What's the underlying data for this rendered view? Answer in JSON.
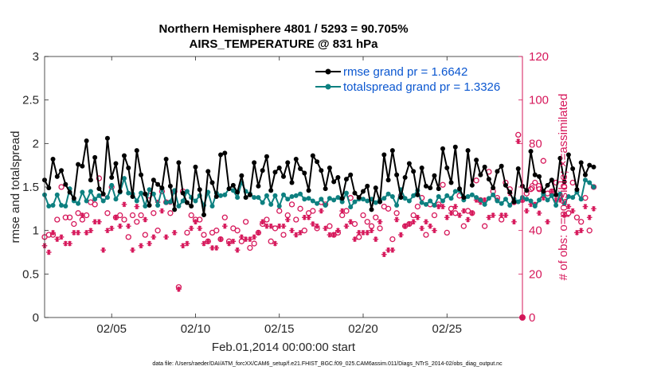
{
  "chart_data": {
    "type": "line",
    "title_line1": "Northern Hemisphere 4801 / 5293 = 90.705%",
    "title_line2": "AIRS_TEMPERATURE @ 831 hPa",
    "xlabel": "Feb.01,2014 00:00:00 start",
    "ylabel_left": "rmse and totalspread",
    "ylabel_right": "# of obs: o=possible; ×=assimilated",
    "footer": "data file: /Users/raeder/DAI/ATM_forcXX/CAM6_setup/f.e21.FHIST_BGC.f09_025.CAM6assim.011/Diags_NTrS_2014-02/obs_diag_output.nc",
    "x_range_days": [
      1,
      29.5
    ],
    "ylim_left": [
      0,
      3
    ],
    "ylim_right": [
      0,
      120
    ],
    "xticks": [
      {
        "day": 5,
        "label": "02/05"
      },
      {
        "day": 10,
        "label": "02/10"
      },
      {
        "day": 15,
        "label": "02/15"
      },
      {
        "day": 20,
        "label": "02/20"
      },
      {
        "day": 25,
        "label": "02/25"
      }
    ],
    "yticks_left": [
      "0",
      "0.5",
      "1",
      "1.5",
      "2",
      "2.5",
      "3"
    ],
    "yticks_right": [
      "0",
      "20",
      "40",
      "60",
      "80",
      "100",
      "120"
    ],
    "legend": [
      {
        "label": "rmse grand pr = 1.6642",
        "color": "#000000"
      },
      {
        "label": "totalspread grand pr = 1.3326",
        "color": "#0d8080"
      }
    ],
    "colors": {
      "rmse": "#000000",
      "spread": "#0d8080",
      "obs": "#d6175a",
      "axis": "#262626"
    },
    "x_start_day": 1.0,
    "x_step_days": 0.25,
    "series": [
      {
        "name": "rmse",
        "values": [
          1.58,
          1.49,
          1.82,
          1.62,
          1.69,
          1.53,
          1.44,
          1.37,
          1.76,
          1.74,
          2.03,
          1.58,
          1.84,
          1.48,
          1.42,
          2.06,
          1.61,
          1.77,
          1.45,
          1.86,
          1.72,
          1.39,
          1.92,
          1.64,
          1.42,
          1.29,
          1.58,
          1.53,
          1.49,
          1.82,
          1.51,
          1.24,
          1.78,
          1.43,
          1.32,
          1.28,
          1.73,
          1.47,
          1.18,
          1.68,
          1.55,
          1.39,
          1.87,
          1.89,
          1.48,
          1.52,
          1.44,
          1.63,
          1.38,
          1.41,
          1.78,
          1.51,
          1.69,
          1.85,
          1.46,
          1.67,
          1.72,
          1.62,
          1.78,
          1.55,
          1.82,
          1.71,
          1.66,
          1.46,
          1.86,
          1.79,
          1.69,
          1.48,
          1.72,
          1.56,
          1.61,
          1.37,
          1.59,
          1.64,
          1.43,
          1.38,
          1.45,
          1.51,
          1.24,
          1.49,
          1.33,
          1.87,
          1.58,
          1.92,
          1.64,
          1.38,
          1.61,
          1.77,
          1.68,
          1.41,
          1.72,
          1.51,
          1.49,
          1.63,
          1.48,
          1.94,
          1.72,
          1.55,
          1.96,
          1.48,
          1.38,
          1.92,
          1.52,
          1.81,
          1.64,
          1.73,
          1.59,
          1.49,
          1.68,
          1.74,
          1.52,
          1.44,
          1.33,
          1.71,
          1.51,
          1.46,
          1.91,
          1.64,
          1.62,
          1.45,
          1.52,
          1.58,
          1.41,
          1.83,
          1.56,
          1.87,
          1.71,
          1.47,
          1.78,
          1.64,
          1.75,
          1.73
        ]
      },
      {
        "name": "totalspread",
        "values": [
          1.41,
          1.28,
          1.29,
          1.41,
          1.29,
          1.28,
          1.48,
          1.34,
          1.31,
          1.44,
          1.34,
          1.45,
          1.36,
          1.4,
          1.34,
          1.38,
          1.52,
          1.36,
          1.44,
          1.6,
          1.43,
          1.42,
          1.34,
          1.43,
          1.28,
          1.47,
          1.42,
          1.29,
          1.48,
          1.32,
          1.33,
          1.46,
          1.28,
          1.34,
          1.45,
          1.38,
          1.34,
          1.4,
          1.29,
          1.44,
          1.28,
          1.43,
          1.4,
          1.41,
          1.48,
          1.46,
          1.38,
          1.55,
          1.45,
          1.42,
          1.38,
          1.38,
          1.32,
          1.4,
          1.3,
          1.4,
          1.28,
          1.41,
          1.36,
          1.39,
          1.4,
          1.42,
          1.36,
          1.37,
          1.34,
          1.31,
          1.36,
          1.29,
          1.37,
          1.35,
          1.38,
          1.33,
          1.43,
          1.27,
          1.33,
          1.36,
          1.36,
          1.34,
          1.36,
          1.32,
          1.35,
          1.37,
          1.42,
          1.39,
          1.29,
          1.47,
          1.37,
          1.34,
          1.4,
          1.46,
          1.32,
          1.3,
          1.34,
          1.29,
          1.39,
          1.34,
          1.4,
          1.37,
          1.45,
          1.46,
          1.35,
          1.39,
          1.41,
          1.38,
          1.35,
          1.3,
          1.37,
          1.41,
          1.34,
          1.31,
          1.36,
          1.29,
          1.36,
          1.33,
          1.38,
          1.36,
          1.34,
          1.28,
          1.35,
          1.42,
          1.35,
          1.4,
          1.29,
          1.42,
          1.31,
          1.39,
          1.38,
          1.44,
          1.36,
          1.58,
          1.55,
          1.5
        ]
      },
      {
        "name": "obs_possible",
        "values": [
          37,
          38,
          38,
          45,
          60,
          46,
          46,
          43,
          48,
          45,
          47,
          53,
          52,
          64,
          55,
          48,
          60,
          46,
          47,
          45,
          37,
          47,
          44,
          47,
          38,
          56,
          48,
          40,
          58,
          53,
          48,
          58,
          14,
          58,
          39,
          47,
          45,
          45,
          38,
          35,
          39,
          40,
          36,
          46,
          35,
          41,
          40,
          35,
          44,
          32,
          34,
          39,
          43,
          45,
          35,
          41,
          49,
          38,
          47,
          52,
          45,
          50,
          40,
          48,
          49,
          41,
          53,
          52,
          42,
          38,
          39,
          47,
          49,
          55,
          43,
          37,
          47,
          44,
          42,
          46,
          41,
          51,
          50,
          36,
          48,
          56,
          42,
          43,
          47,
          51,
          55,
          38,
          52,
          47,
          52,
          61,
          39,
          50,
          48,
          56,
          42,
          49,
          48,
          63,
          54,
          42,
          67,
          58,
          55,
          45,
          62,
          59,
          53,
          84,
          54,
          57,
          59,
          62,
          59,
          72,
          57,
          58,
          62,
          56,
          60,
          48,
          62,
          46,
          44,
          55,
          40,
          60
        ]
      },
      {
        "name": "obs_assimilated",
        "values": [
          33,
          30,
          39,
          36,
          37,
          34,
          34,
          39,
          39,
          47,
          39,
          40,
          44,
          44,
          31,
          40,
          41,
          46,
          42,
          52,
          42,
          31,
          51,
          33,
          45,
          34,
          37,
          53,
          49,
          37,
          53,
          39,
          13,
          33,
          34,
          41,
          44,
          41,
          34,
          35,
          32,
          32,
          36,
          42,
          34,
          35,
          31,
          37,
          36,
          36,
          37,
          39,
          44,
          42,
          42,
          34,
          42,
          42,
          45,
          40,
          38,
          39,
          46,
          46,
          43,
          42,
          49,
          41,
          38,
          38,
          40,
          49,
          42,
          44,
          36,
          39,
          39,
          39,
          40,
          36,
          44,
          29,
          31,
          31,
          45,
          38,
          42,
          43,
          44,
          46,
          41,
          44,
          42,
          40,
          51,
          51,
          46,
          48,
          51,
          47,
          49,
          45,
          48,
          54,
          53,
          54,
          46,
          47,
          54,
          47,
          47,
          57,
          44,
          81,
          54,
          49,
          52,
          52,
          48,
          55,
          44,
          58,
          54,
          54,
          47,
          51,
          49,
          39,
          40,
          51,
          46,
          50
        ]
      }
    ]
  }
}
